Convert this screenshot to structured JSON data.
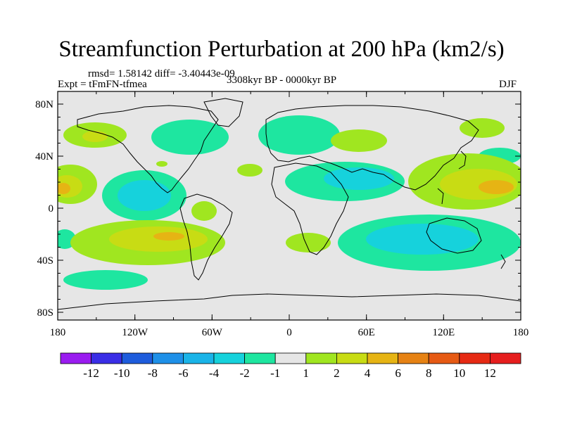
{
  "title": "Streamfunction Perturbation at 200 hPa (km2/s)",
  "stats": "rmsd= 1.58142 diff= -3.40443e-09",
  "experiment": "Expt = tFmFN-tfmea",
  "period": "3308kyr BP - 0000kyr BP",
  "season": "DJF",
  "lat_labels": [
    "80N",
    "40N",
    "0",
    "40S",
    "80S"
  ],
  "lon_labels": [
    "180",
    "120W",
    "60W",
    "0",
    "60E",
    "120E",
    "180"
  ],
  "colorbar": {
    "labels": [
      "-12",
      "-10",
      "-8",
      "-6",
      "-4",
      "-2",
      "-1",
      "1",
      "2",
      "4",
      "6",
      "8",
      "10",
      "12"
    ],
    "colors": [
      "#9a1cf0",
      "#3a2ee6",
      "#1e5cdc",
      "#1e90e8",
      "#1ab4e8",
      "#16d2dc",
      "#1ee6a0",
      "#e6e6e6",
      "#a0e620",
      "#c8dc14",
      "#e6b414",
      "#e68214",
      "#e65a14",
      "#e62a14",
      "#e61e1e"
    ]
  },
  "colors": {
    "background_field": "#e6e6e6",
    "coast": "#000000"
  }
}
